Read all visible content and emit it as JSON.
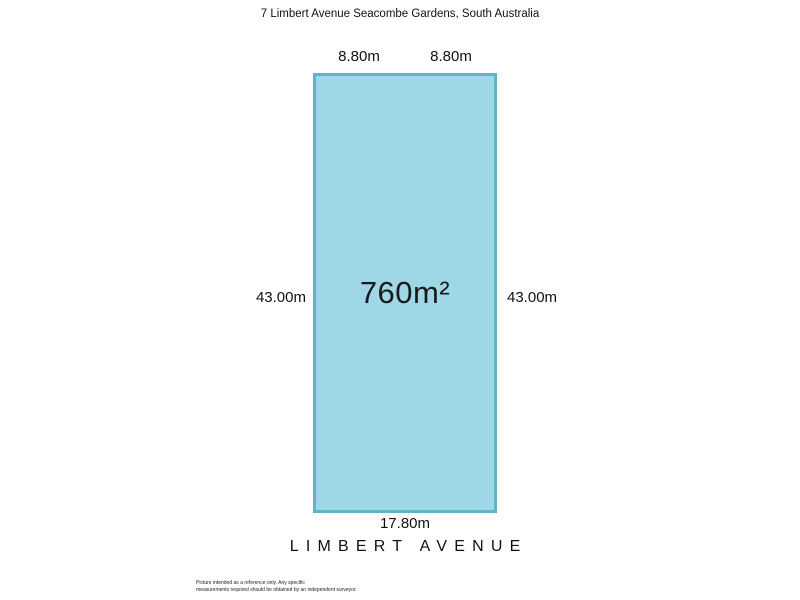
{
  "title": "7 Limbert Avenue Seacombe Gardens, South Australia",
  "plot": {
    "area_label": "760m²",
    "dimensions": {
      "top": [
        "8.80m",
        "8.80m"
      ],
      "left": "43.00m",
      "right": "43.00m",
      "bottom": "17.80m"
    },
    "colors": {
      "fill": "#9ed7e5",
      "border": "#5fb4ca"
    }
  },
  "street_label": "LIMBERT AVENUE",
  "disclaimer": {
    "line1": "Picture intended as a reference only. Any specific",
    "line2": "measurements required should be obtained by an independent surveyor."
  }
}
